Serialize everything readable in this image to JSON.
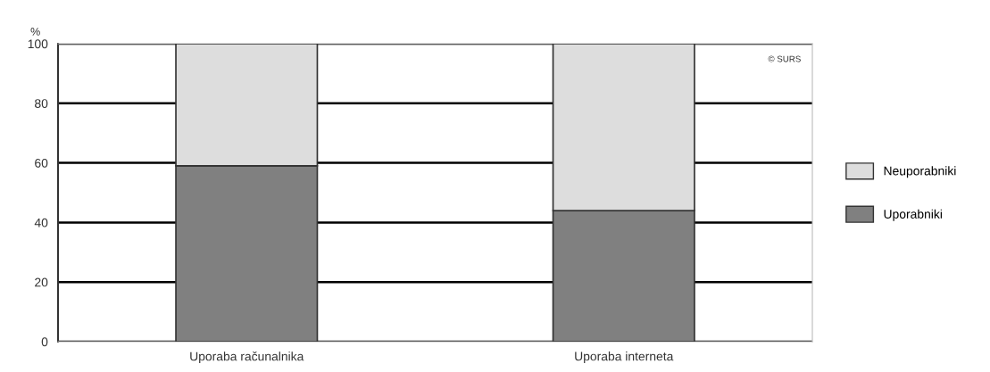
{
  "chart_data": {
    "type": "bar",
    "ylabel": "%",
    "stacked": true,
    "categories": [
      "Uporaba računalnika",
      "Uporaba interneta"
    ],
    "series": [
      {
        "name": "Uporabniki",
        "color": "#808080",
        "values": [
          59,
          44
        ]
      },
      {
        "name": "Neuporabniki",
        "color": "#dddddd",
        "values": [
          41,
          56
        ]
      }
    ],
    "ylim": [
      0,
      100
    ],
    "yticks": [
      0,
      20,
      40,
      60,
      80,
      100
    ],
    "grid": "y",
    "legend": "right",
    "annotations": [
      "© SURS"
    ]
  }
}
